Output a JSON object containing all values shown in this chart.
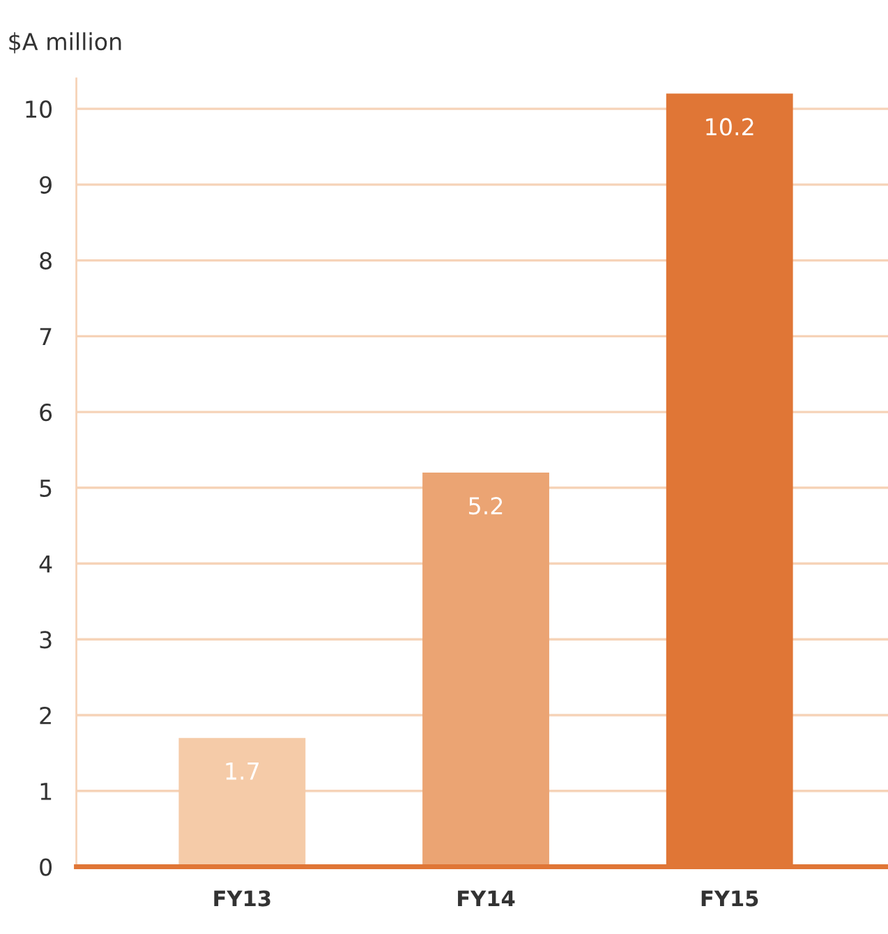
{
  "chart_data": {
    "type": "bar",
    "ylabel": "$A million",
    "categories": [
      "FY13",
      "FY14",
      "FY15"
    ],
    "values": [
      1.7,
      5.2,
      10.2
    ],
    "colors": [
      "#f5cba8",
      "#eba473",
      "#e07636"
    ],
    "ylim": [
      0,
      10.4
    ],
    "yticks": [
      0,
      1,
      2,
      3,
      4,
      5,
      6,
      7,
      8,
      9,
      10
    ],
    "grid": "y",
    "data_labels": true
  }
}
